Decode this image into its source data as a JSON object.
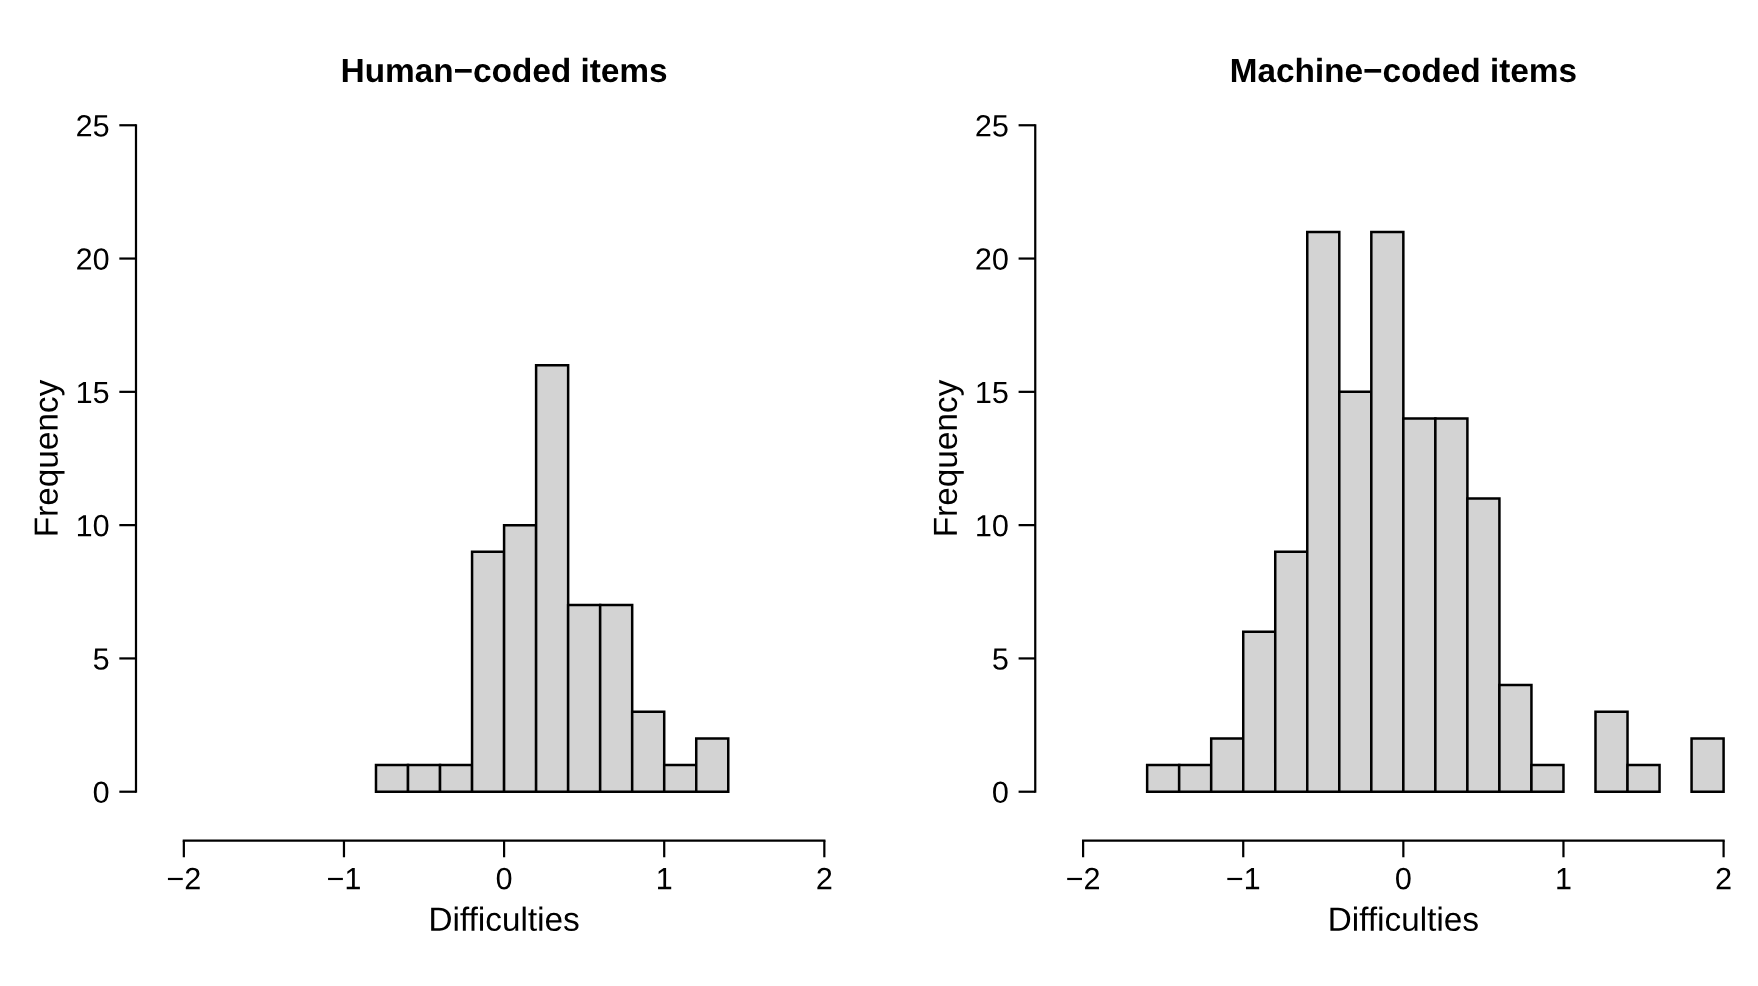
{
  "chart_data": [
    {
      "type": "histogram",
      "title": "Human−coded items",
      "xlabel": "Difficulties",
      "ylabel": "Frequency",
      "bins": [
        -0.8,
        -0.6,
        -0.4,
        -0.2,
        0,
        0.2,
        0.4,
        0.6,
        0.8,
        1.0,
        1.2,
        1.4
      ],
      "values": [
        1,
        1,
        1,
        9,
        10,
        16,
        7,
        7,
        3,
        1,
        2
      ],
      "color": "#d3d3d3",
      "xlim": [
        -2,
        2
      ],
      "xticks": [
        -2,
        -1,
        0,
        1,
        2
      ],
      "ylim": [
        0,
        25
      ],
      "yticks": [
        0,
        5,
        10,
        15,
        20,
        25
      ],
      "grid": false
    },
    {
      "type": "histogram",
      "title": "Machine−coded items",
      "xlabel": "Difficulties",
      "ylabel": "Frequency",
      "bins": [
        -1.6,
        -1.4,
        -1.2,
        -1.0,
        -0.8,
        -0.6,
        -0.4,
        -0.2,
        0,
        0.2,
        0.4,
        0.6,
        0.8,
        1.0,
        1.2,
        1.4,
        1.6,
        1.8,
        2.0
      ],
      "values": [
        1,
        1,
        2,
        6,
        9,
        21,
        15,
        21,
        14,
        14,
        11,
        4,
        1,
        0,
        3,
        1,
        0,
        2
      ],
      "color": "#d3d3d3",
      "xlim": [
        -2,
        2
      ],
      "xticks": [
        -2,
        -1,
        0,
        1,
        2
      ],
      "ylim": [
        0,
        25
      ],
      "yticks": [
        0,
        5,
        10,
        15,
        20,
        25
      ],
      "grid": false
    }
  ]
}
